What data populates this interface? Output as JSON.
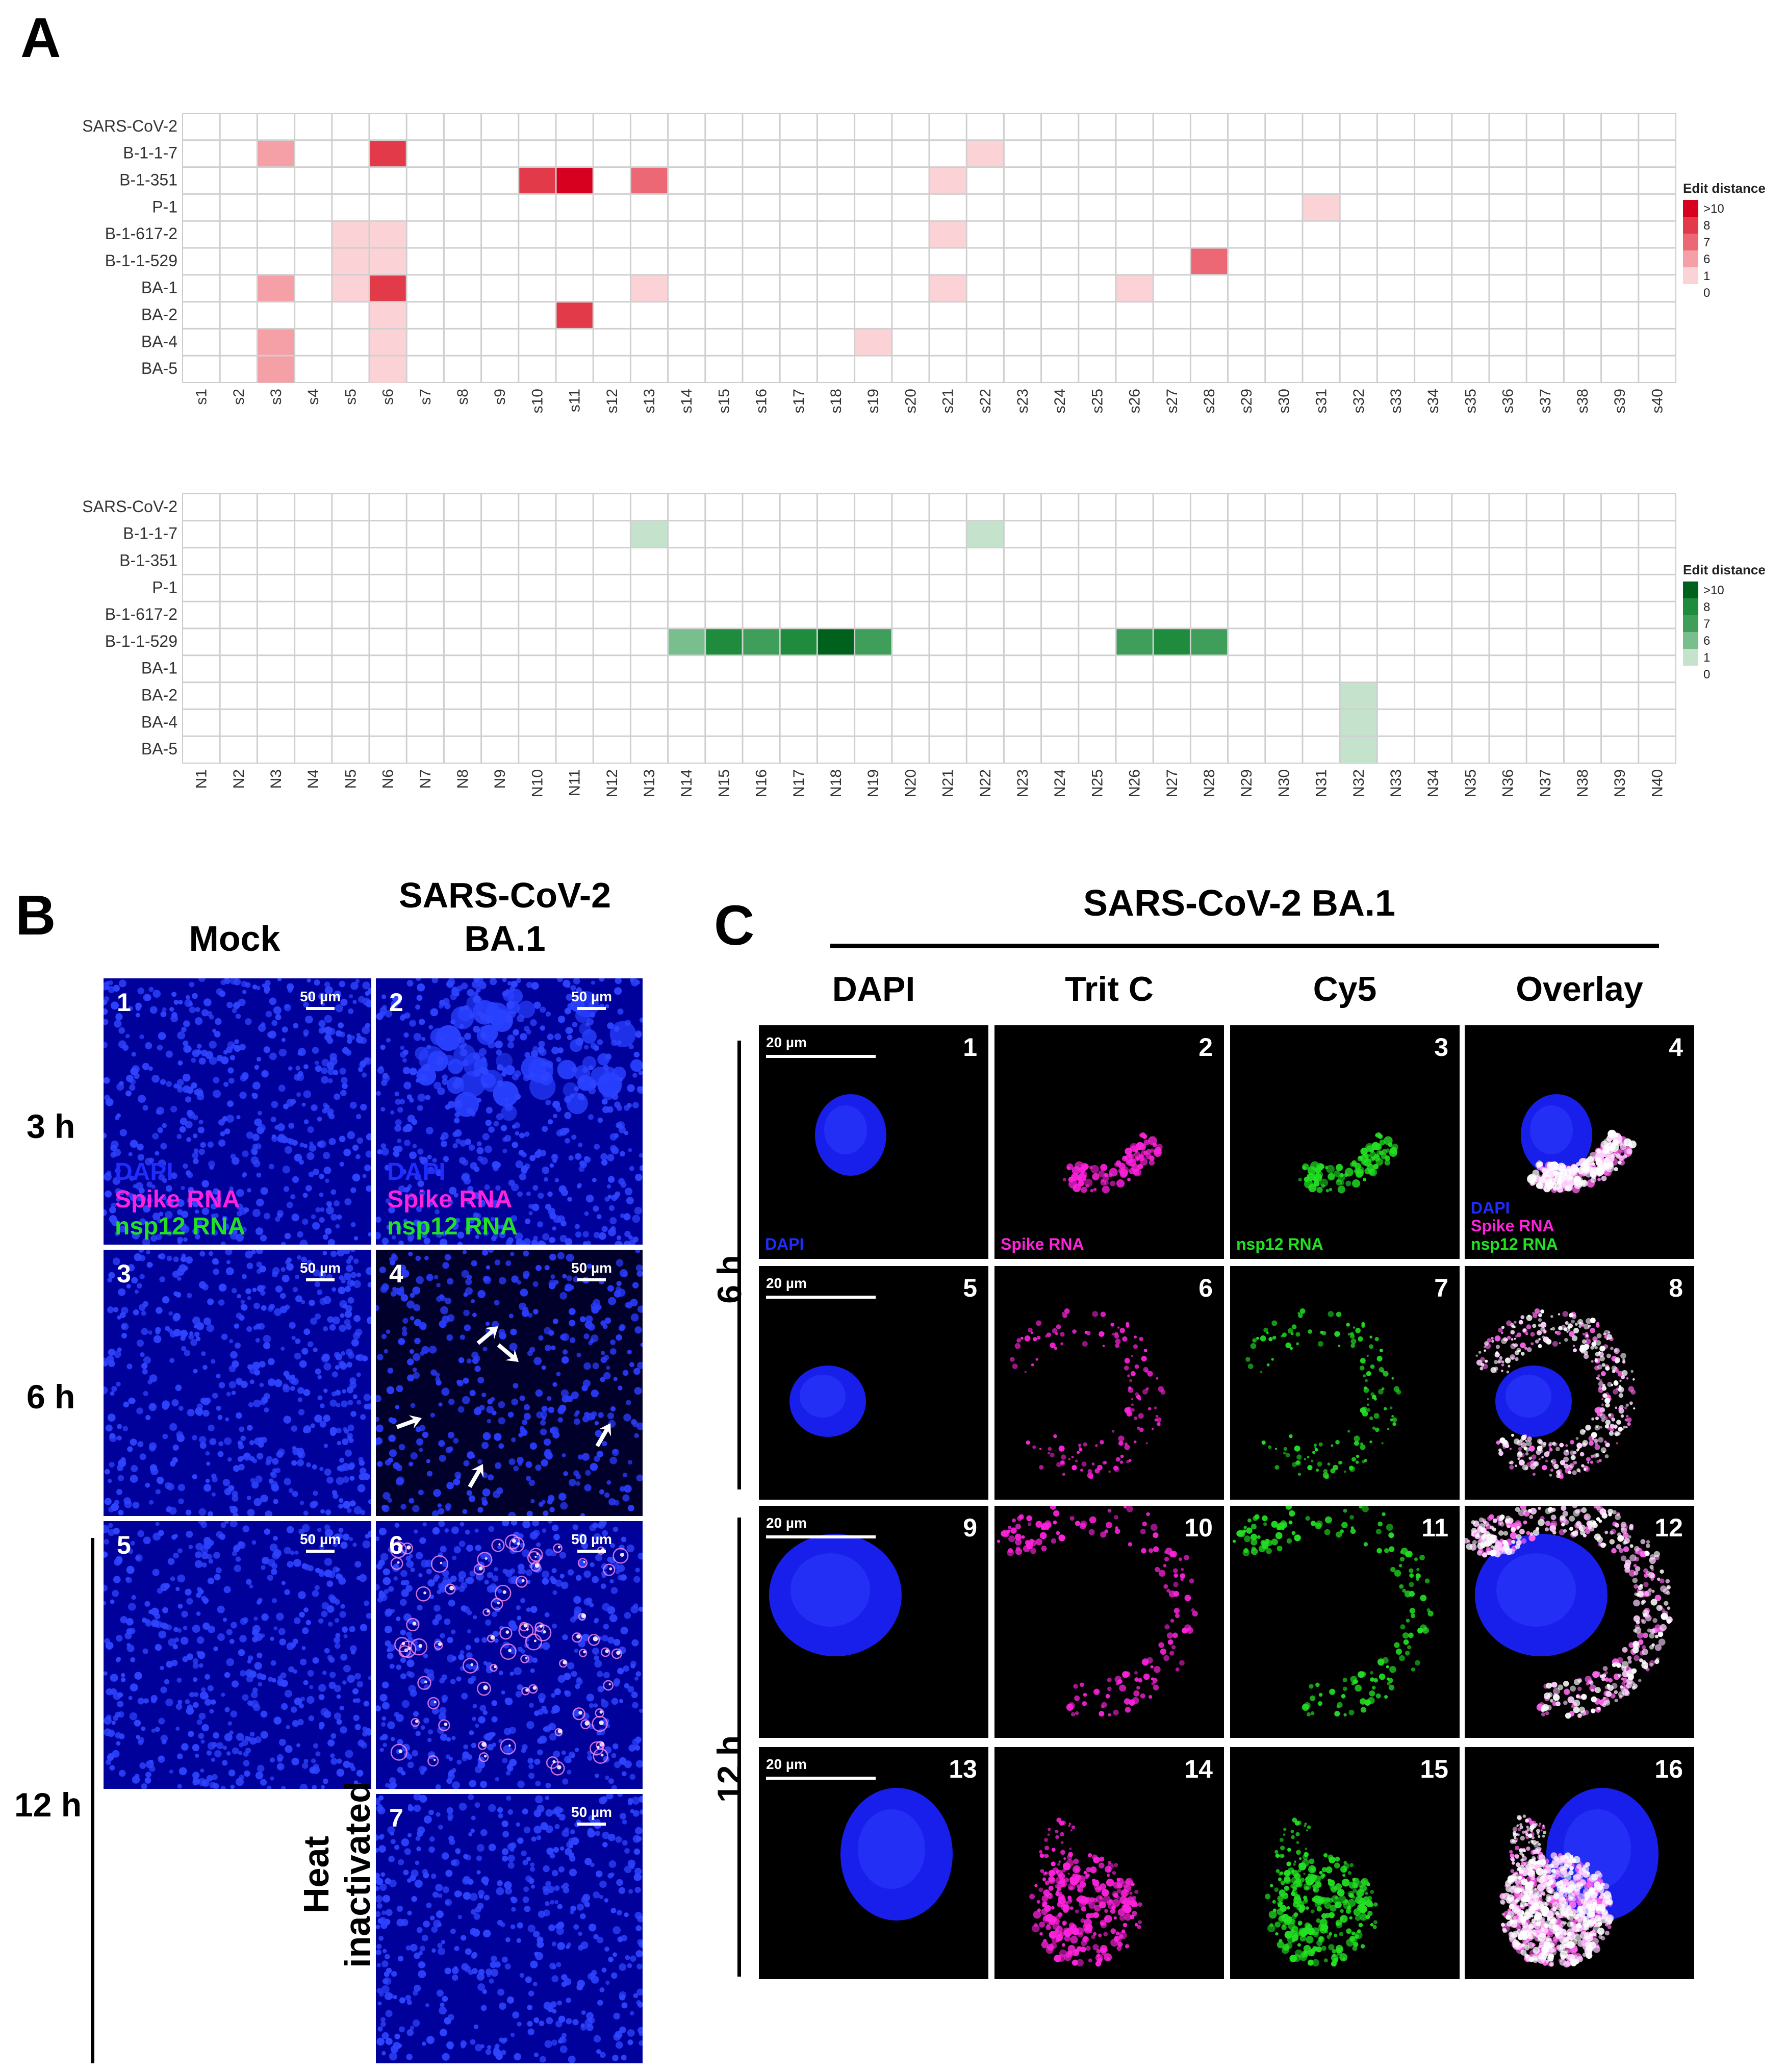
{
  "panels": {
    "A": "A",
    "B": "B",
    "C": "C"
  },
  "heatmap_rows": [
    "SARS-CoV-2",
    "B-1-1-7",
    "B-1-351",
    "P-1",
    "B-1-617-2",
    "B-1-1-529",
    "BA-1",
    "BA-2",
    "BA-4",
    "BA-5"
  ],
  "chart_data": [
    {
      "type": "heatmap",
      "rows": [
        "SARS-CoV-2",
        "B-1-1-7",
        "B-1-351",
        "P-1",
        "B-1-617-2",
        "B-1-1-529",
        "BA-1",
        "BA-2",
        "BA-4",
        "BA-5"
      ],
      "columns": [
        "s1",
        "s2",
        "s3",
        "s4",
        "s5",
        "s6",
        "s7",
        "s8",
        "s9",
        "s10",
        "s11",
        "s12",
        "s13",
        "s14",
        "s15",
        "s16",
        "s17",
        "s18",
        "s19",
        "s20",
        "s21",
        "s22",
        "s23",
        "s24",
        "s25",
        "s26",
        "s27",
        "s28",
        "s29",
        "s30",
        "s31",
        "s32",
        "s33",
        "s34",
        "s35",
        "s36",
        "s37",
        "s38",
        "s39",
        "s40"
      ],
      "legend_title": "Edit distance",
      "legend_labels": [
        ">10",
        "8",
        "7",
        "6",
        "1",
        "0"
      ],
      "colors": [
        "#d7001f",
        "#e33a4a",
        "#ec6874",
        "#f5a0a6",
        "#fbd3d6",
        "#ffffff"
      ],
      "cells": [
        [
          "B-1-1-7",
          "s3",
          "6"
        ],
        [
          "B-1-1-7",
          "s6",
          "8"
        ],
        [
          "B-1-1-7",
          "s22",
          "1"
        ],
        [
          "B-1-351",
          "s10",
          "8"
        ],
        [
          "B-1-351",
          "s11",
          ">10"
        ],
        [
          "B-1-351",
          "s13",
          "7"
        ],
        [
          "B-1-351",
          "s21",
          "1"
        ],
        [
          "P-1",
          "s31",
          "1"
        ],
        [
          "B-1-617-2",
          "s5",
          "1"
        ],
        [
          "B-1-617-2",
          "s6",
          "1"
        ],
        [
          "B-1-617-2",
          "s21",
          "1"
        ],
        [
          "B-1-1-529",
          "s5",
          "1"
        ],
        [
          "B-1-1-529",
          "s6",
          "1"
        ],
        [
          "B-1-1-529",
          "s28",
          "7"
        ],
        [
          "BA-1",
          "s3",
          "6"
        ],
        [
          "BA-1",
          "s5",
          "1"
        ],
        [
          "BA-1",
          "s6",
          "8"
        ],
        [
          "BA-1",
          "s13",
          "1"
        ],
        [
          "BA-1",
          "s21",
          "1"
        ],
        [
          "BA-1",
          "s26",
          "1"
        ],
        [
          "BA-2",
          "s6",
          "1"
        ],
        [
          "BA-2",
          "s11",
          "8"
        ],
        [
          "BA-4",
          "s3",
          "6"
        ],
        [
          "BA-4",
          "s6",
          "1"
        ],
        [
          "BA-4",
          "s19",
          "1"
        ],
        [
          "BA-5",
          "s3",
          "6"
        ],
        [
          "BA-5",
          "s6",
          "1"
        ]
      ]
    },
    {
      "type": "heatmap",
      "rows": [
        "SARS-CoV-2",
        "B-1-1-7",
        "B-1-351",
        "P-1",
        "B-1-617-2",
        "B-1-1-529",
        "BA-1",
        "BA-2",
        "BA-4",
        "BA-5"
      ],
      "columns": [
        "N1",
        "N2",
        "N3",
        "N4",
        "N5",
        "N6",
        "N7",
        "N8",
        "N9",
        "N10",
        "N11",
        "N12",
        "N13",
        "N14",
        "N15",
        "N16",
        "N17",
        "N18",
        "N19",
        "N20",
        "N21",
        "N22",
        "N23",
        "N24",
        "N25",
        "N26",
        "N27",
        "N28",
        "N29",
        "N30",
        "N31",
        "N32",
        "N33",
        "N34",
        "N35",
        "N36",
        "N37",
        "N38",
        "N39",
        "N40"
      ],
      "legend_title": "Edit distance",
      "legend_labels": [
        ">10",
        "8",
        "7",
        "6",
        "1",
        "0"
      ],
      "colors": [
        "#00611c",
        "#1e8c3c",
        "#3f9e5a",
        "#79be8d",
        "#c5e3cc",
        "#ffffff"
      ],
      "cells": [
        [
          "B-1-1-7",
          "N13",
          "1"
        ],
        [
          "B-1-1-7",
          "N22",
          "1"
        ],
        [
          "B-1-1-529",
          "N14",
          "6"
        ],
        [
          "B-1-1-529",
          "N15",
          "8"
        ],
        [
          "B-1-1-529",
          "N16",
          "7"
        ],
        [
          "B-1-1-529",
          "N17",
          "8"
        ],
        [
          "B-1-1-529",
          "N18",
          ">10"
        ],
        [
          "B-1-1-529",
          "N19",
          "7"
        ],
        [
          "B-1-1-529",
          "N26",
          "7"
        ],
        [
          "B-1-1-529",
          "N27",
          "8"
        ],
        [
          "B-1-1-529",
          "N28",
          "7"
        ],
        [
          "BA-2",
          "N32",
          "1"
        ],
        [
          "BA-4",
          "N32",
          "1"
        ],
        [
          "BA-5",
          "N32",
          "1"
        ]
      ]
    }
  ],
  "panel_b": {
    "col_mock": "Mock",
    "col_virus_line1": "SARS-CoV-2",
    "col_virus_line2": "BA.1",
    "row_3h": "3 h",
    "row_6h": "6 h",
    "row_12h": "12 h",
    "heat_line1": "Heat",
    "heat_line2": "inactivated",
    "scale": "50 µm",
    "legend": {
      "dapi": "DAPI",
      "spike": "Spike RNA",
      "nsp12": "nsp12 RNA"
    },
    "nums": [
      "1",
      "2",
      "3",
      "4",
      "5",
      "6",
      "7"
    ]
  },
  "panel_c": {
    "title": "SARS-CoV-2 BA.1",
    "cols": [
      "DAPI",
      "Trit C",
      "Cy5",
      "Overlay"
    ],
    "row_6h": "6 h",
    "row_12h": "12 h",
    "scale": "20 µm",
    "legend": {
      "dapi": "DAPI",
      "spike": "Spike RNA",
      "nsp12": "nsp12 RNA"
    },
    "nums": [
      "1",
      "2",
      "3",
      "4",
      "5",
      "6",
      "7",
      "8",
      "9",
      "10",
      "11",
      "12",
      "13",
      "14",
      "15",
      "16"
    ]
  },
  "colors": {
    "dapi": "#1f2cff",
    "spike": "#ff22dd",
    "nsp12": "#22e022",
    "panel_bg": "#000000",
    "b_bg": "#00009a"
  }
}
